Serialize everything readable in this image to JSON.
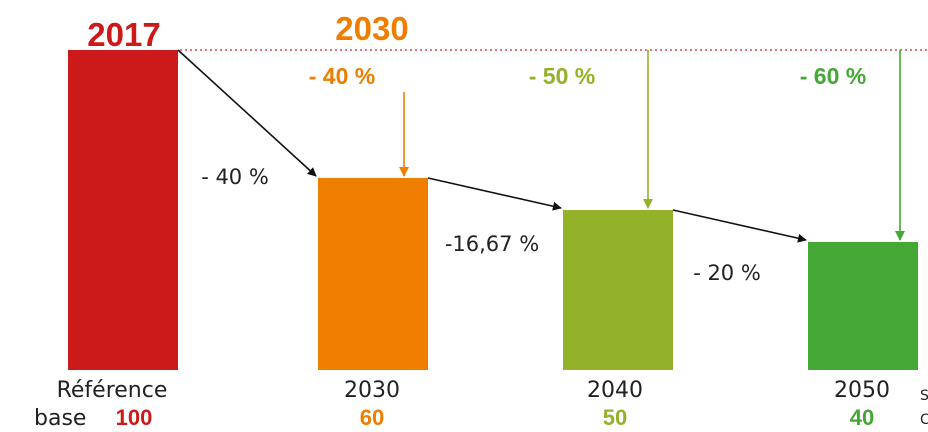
{
  "colors": {
    "red": "#cc1a1a",
    "orange": "#ee7d00",
    "light_green": "#94b12a",
    "green": "#44a834",
    "text": "#222222",
    "ref_line": "#d6494a"
  },
  "header_labels": {
    "year_2017": "2017",
    "year_2030": "2030"
  },
  "chart_data": {
    "type": "bar",
    "ylim": [
      0,
      100
    ],
    "bars": [
      {
        "key": "ref",
        "label_line1": "Référence",
        "label_prefix": "base",
        "value_label": "100",
        "value": 100,
        "color": "#cc1a1a"
      },
      {
        "key": "2030",
        "label_line1": "2030",
        "label_prefix": "",
        "value_label": "60",
        "value": 60,
        "color": "#ee7d00"
      },
      {
        "key": "2040",
        "label_line1": "2040",
        "label_prefix": "",
        "value_label": "50",
        "value": 50,
        "color": "#94b12a"
      },
      {
        "key": "2050",
        "label_line1": "2050",
        "label_prefix": "",
        "value_label": "40",
        "value": 40,
        "color": "#44a834"
      }
    ],
    "step_changes": [
      {
        "from": "ref",
        "to": "2030",
        "label": "- 40 %"
      },
      {
        "from": "2030",
        "to": "2040",
        "label": "-16,67 %"
      },
      {
        "from": "2040",
        "to": "2050",
        "label": "- 20 %"
      }
    ],
    "cumulative_changes": [
      {
        "bar": "2030",
        "label": "- 40 %",
        "color": "#ee7d00"
      },
      {
        "bar": "2040",
        "label": "- 50 %",
        "color": "#94b12a"
      },
      {
        "bar": "2050",
        "label": "- 60 %",
        "color": "#44a834"
      }
    ],
    "truncated_text": [
      "S",
      "C"
    ]
  }
}
